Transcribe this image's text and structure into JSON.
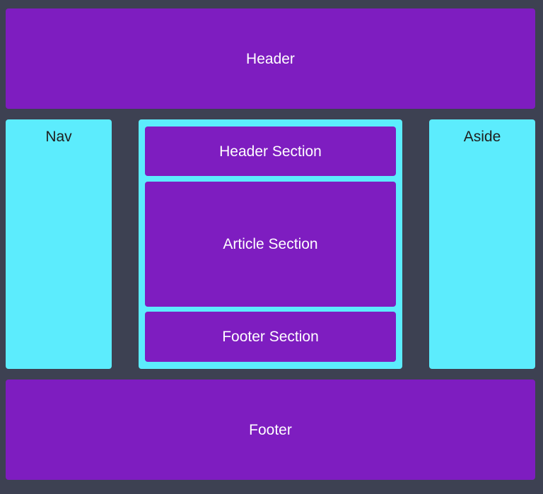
{
  "header": {
    "label": "Header"
  },
  "nav": {
    "label": "Nav"
  },
  "main": {
    "header_section": "Header Section",
    "article_section": "Article Section",
    "footer_section": "Footer Section"
  },
  "aside": {
    "label": "Aside"
  },
  "footer": {
    "label": "Footer"
  },
  "colors": {
    "background": "#3d4152",
    "purple": "#7e1dc0",
    "cyan": "#5cecfd"
  }
}
